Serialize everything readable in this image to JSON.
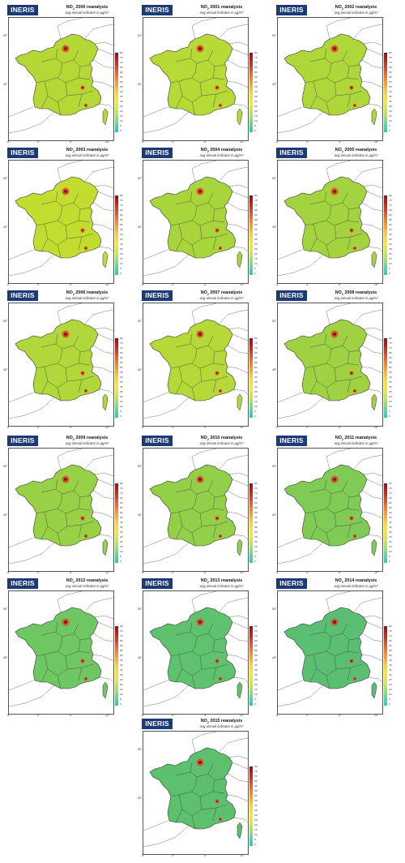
{
  "logo_text": "INERIS",
  "subtitle": "avg annual indicator in µg/m³",
  "pollutant_main": "NO",
  "pollutant_sub": "2",
  "title_suffix": "reanalysis",
  "x_ticks": [
    "-5°",
    "0°",
    "5°",
    "10°"
  ],
  "y_ticks": [
    "50°",
    "45°"
  ],
  "colorbar_ticks": [
    "80",
    "75",
    "70",
    "65",
    "60",
    "55",
    "50",
    "45",
    "40",
    "35",
    "30",
    "25",
    "20",
    "15",
    "10",
    "5",
    "0"
  ],
  "panels": [
    {
      "year": "2000",
      "fill": "#b4d936"
    },
    {
      "year": "2001",
      "fill": "#b6da36"
    },
    {
      "year": "2002",
      "fill": "#aed73a"
    },
    {
      "year": "2003",
      "fill": "#c3dc30"
    },
    {
      "year": "2004",
      "fill": "#a8d53c"
    },
    {
      "year": "2005",
      "fill": "#a3d33f"
    },
    {
      "year": "2006",
      "fill": "#b0d83a"
    },
    {
      "year": "2007",
      "fill": "#b4d938"
    },
    {
      "year": "2008",
      "fill": "#9ed242"
    },
    {
      "year": "2009",
      "fill": "#98d046"
    },
    {
      "year": "2010",
      "fill": "#93cf48"
    },
    {
      "year": "2011",
      "fill": "#7fcb55"
    },
    {
      "year": "2012",
      "fill": "#6fc763"
    },
    {
      "year": "2013",
      "fill": "#5fc26e"
    },
    {
      "year": "2014",
      "fill": "#5abf72"
    },
    {
      "year": "2015",
      "fill": "#5cc06f"
    }
  ]
}
